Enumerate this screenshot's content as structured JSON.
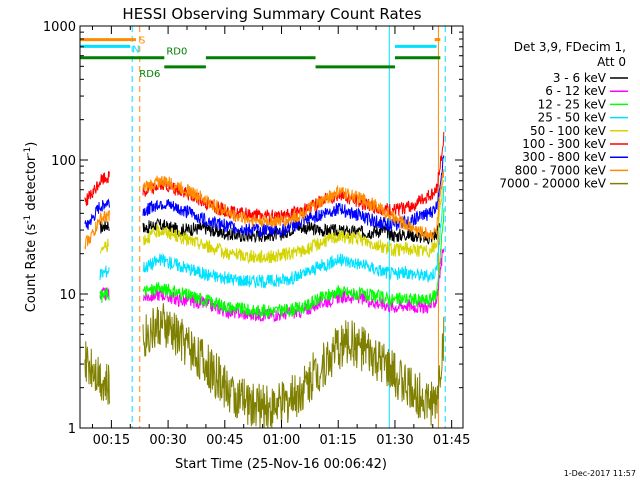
{
  "chart_data": {
    "type": "line",
    "title": "HESSI Observing Summary Count Rates",
    "xlabel": "Start Time (25-Nov-16 00:06:42)",
    "ylabel": "Count Rate (s⁻¹ detector⁻¹)",
    "ylabel_main": "Count Rate (s",
    "ylabel_sup1": "-1",
    "ylabel_mid": " detector",
    "ylabel_sup2": "-1",
    "ylabel_end": ")",
    "yscale": "log",
    "ylim": [
      1,
      1000
    ],
    "xlim_minutes": [
      6.7,
      108
    ],
    "y_ticks": [
      {
        "value": 1,
        "label": "1"
      },
      {
        "value": 10,
        "label": "10"
      },
      {
        "value": 100,
        "label": "100"
      },
      {
        "value": 1000,
        "label": "1000"
      }
    ],
    "x_ticks": [
      {
        "minute": 15,
        "label": "00:15"
      },
      {
        "minute": 30,
        "label": "00:30"
      },
      {
        "minute": 45,
        "label": "00:45"
      },
      {
        "minute": 60,
        "label": "01:00"
      },
      {
        "minute": 75,
        "label": "01:15"
      },
      {
        "minute": 90,
        "label": "01:30"
      },
      {
        "minute": 105,
        "label": "01:45"
      }
    ],
    "legend": {
      "header": [
        "Det 3,9, FDecim 1,",
        "Att 0"
      ],
      "placement": "right"
    },
    "series": [
      {
        "name": "3 - 6 keV",
        "color": "#000000",
        "points": [
          [
            12,
            31
          ],
          [
            13,
            32
          ],
          [
            14,
            33
          ],
          [
            24,
            31
          ],
          [
            27,
            33
          ],
          [
            33,
            30
          ],
          [
            40,
            31
          ],
          [
            43,
            29
          ],
          [
            50,
            27
          ],
          [
            60,
            28
          ],
          [
            64,
            32
          ],
          [
            70,
            30
          ],
          [
            78,
            29
          ],
          [
            83,
            29
          ],
          [
            87,
            30
          ],
          [
            90,
            27
          ],
          [
            93,
            28
          ],
          [
            96,
            27
          ],
          [
            99,
            26
          ],
          [
            101,
            28
          ],
          [
            102,
            35
          ]
        ]
      },
      {
        "name": "6 - 12 keV",
        "color": "#ff00ff",
        "points": [
          [
            12,
            10
          ],
          [
            14,
            10
          ],
          [
            24,
            9.5
          ],
          [
            28,
            10
          ],
          [
            33,
            9
          ],
          [
            40,
            8.5
          ],
          [
            45,
            7.5
          ],
          [
            52,
            7
          ],
          [
            58,
            7
          ],
          [
            62,
            7.2
          ],
          [
            66,
            7.5
          ],
          [
            70,
            8.5
          ],
          [
            75,
            9.5
          ],
          [
            80,
            9.5
          ],
          [
            86,
            8.5
          ],
          [
            90,
            8
          ],
          [
            93,
            8.3
          ],
          [
            96,
            8
          ],
          [
            99,
            8
          ],
          [
            101,
            9
          ],
          [
            103,
            25
          ]
        ]
      },
      {
        "name": "12 - 25 keV",
        "color": "#00ff00",
        "points": [
          [
            12,
            9.5
          ],
          [
            14,
            10
          ],
          [
            24,
            10.5
          ],
          [
            28,
            11
          ],
          [
            34,
            10
          ],
          [
            40,
            9
          ],
          [
            46,
            8
          ],
          [
            52,
            7.5
          ],
          [
            58,
            7.5
          ],
          [
            62,
            7.6
          ],
          [
            66,
            8
          ],
          [
            70,
            9.2
          ],
          [
            75,
            10.5
          ],
          [
            80,
            10
          ],
          [
            86,
            9.5
          ],
          [
            90,
            9
          ],
          [
            93,
            9.3
          ],
          [
            96,
            9
          ],
          [
            99,
            9
          ],
          [
            101,
            10
          ],
          [
            103,
            40
          ]
        ]
      },
      {
        "name": "25 - 50 keV",
        "color": "#00e0ff",
        "points": [
          [
            12,
            14
          ],
          [
            14,
            15
          ],
          [
            24,
            16
          ],
          [
            28,
            18
          ],
          [
            34,
            16
          ],
          [
            40,
            14
          ],
          [
            46,
            13
          ],
          [
            52,
            12.5
          ],
          [
            58,
            12.5
          ],
          [
            62,
            13
          ],
          [
            66,
            14
          ],
          [
            70,
            16
          ],
          [
            75,
            18
          ],
          [
            80,
            17
          ],
          [
            86,
            15
          ],
          [
            90,
            14
          ],
          [
            93,
            14.5
          ],
          [
            96,
            14
          ],
          [
            99,
            13.5
          ],
          [
            101,
            15
          ],
          [
            103,
            60
          ]
        ]
      },
      {
        "name": "50 - 100 keV",
        "color": "#d4d400",
        "points": [
          [
            12,
            22
          ],
          [
            14,
            23
          ],
          [
            24,
            26
          ],
          [
            28,
            30
          ],
          [
            34,
            26
          ],
          [
            40,
            23
          ],
          [
            46,
            20
          ],
          [
            52,
            19
          ],
          [
            58,
            19
          ],
          [
            62,
            20
          ],
          [
            66,
            21
          ],
          [
            70,
            24
          ],
          [
            75,
            27
          ],
          [
            80,
            26
          ],
          [
            86,
            23
          ],
          [
            90,
            21
          ],
          [
            93,
            22
          ],
          [
            96,
            21
          ],
          [
            99,
            21
          ],
          [
            101,
            23
          ],
          [
            103,
            80
          ]
        ]
      },
      {
        "name": "100 - 300 keV",
        "color": "#ff0000",
        "points": [
          [
            8,
            50
          ],
          [
            10,
            55
          ],
          [
            12,
            70
          ],
          [
            14,
            75
          ],
          [
            24,
            58
          ],
          [
            26,
            62
          ],
          [
            28,
            66
          ],
          [
            32,
            60
          ],
          [
            36,
            55
          ],
          [
            40,
            48
          ],
          [
            44,
            43
          ],
          [
            48,
            40
          ],
          [
            52,
            39
          ],
          [
            56,
            38
          ],
          [
            60,
            38
          ],
          [
            62,
            39
          ],
          [
            64,
            41
          ],
          [
            68,
            45
          ],
          [
            72,
            52
          ],
          [
            75,
            55
          ],
          [
            78,
            52
          ],
          [
            82,
            47
          ],
          [
            86,
            43
          ],
          [
            90,
            42
          ],
          [
            94,
            45
          ],
          [
            97,
            50
          ],
          [
            100,
            56
          ],
          [
            101,
            60
          ],
          [
            103,
            150
          ]
        ]
      },
      {
        "name": "300 - 800 keV",
        "color": "#0000ff",
        "points": [
          [
            8,
            32
          ],
          [
            10,
            36
          ],
          [
            12,
            45
          ],
          [
            14,
            48
          ],
          [
            24,
            42
          ],
          [
            26,
            45
          ],
          [
            28,
            48
          ],
          [
            32,
            44
          ],
          [
            36,
            40
          ],
          [
            40,
            36
          ],
          [
            44,
            33
          ],
          [
            48,
            31
          ],
          [
            52,
            30
          ],
          [
            56,
            30
          ],
          [
            60,
            30
          ],
          [
            62,
            31
          ],
          [
            64,
            33
          ],
          [
            68,
            37
          ],
          [
            72,
            41
          ],
          [
            75,
            43
          ],
          [
            78,
            41
          ],
          [
            82,
            37
          ],
          [
            86,
            34
          ],
          [
            90,
            33
          ],
          [
            94,
            35
          ],
          [
            97,
            38
          ],
          [
            100,
            41
          ],
          [
            101,
            45
          ],
          [
            103,
            110
          ]
        ]
      },
      {
        "name": "800 - 7000 keV",
        "color": "#ff8c00",
        "points": [
          [
            8,
            24
          ],
          [
            10,
            28
          ],
          [
            12,
            36
          ],
          [
            14,
            38
          ],
          [
            24,
            62
          ],
          [
            26,
            66
          ],
          [
            28,
            70
          ],
          [
            32,
            65
          ],
          [
            36,
            58
          ],
          [
            40,
            50
          ],
          [
            44,
            43
          ],
          [
            48,
            38
          ],
          [
            52,
            36
          ],
          [
            56,
            35
          ],
          [
            60,
            35
          ],
          [
            62,
            36
          ],
          [
            64,
            38
          ],
          [
            68,
            44
          ],
          [
            72,
            52
          ],
          [
            75,
            58
          ],
          [
            78,
            55
          ],
          [
            82,
            50
          ],
          [
            86,
            44
          ],
          [
            90,
            36
          ],
          [
            94,
            32
          ],
          [
            97,
            29
          ],
          [
            100,
            28
          ],
          [
            101,
            30
          ],
          [
            103,
            90
          ]
        ]
      },
      {
        "name": "7000 - 20000 keV",
        "color": "#808000",
        "points": [
          [
            8,
            3
          ],
          [
            10,
            3
          ],
          [
            12,
            2.5
          ],
          [
            14,
            2
          ],
          [
            24,
            5
          ],
          [
            26,
            5.5
          ],
          [
            28,
            6
          ],
          [
            32,
            5
          ],
          [
            36,
            4
          ],
          [
            40,
            3
          ],
          [
            44,
            2.2
          ],
          [
            48,
            1.7
          ],
          [
            52,
            1.5
          ],
          [
            56,
            1.4
          ],
          [
            60,
            1.5
          ],
          [
            62,
            1.6
          ],
          [
            64,
            1.8
          ],
          [
            68,
            2.4
          ],
          [
            72,
            3.2
          ],
          [
            75,
            4
          ],
          [
            78,
            4.5
          ],
          [
            82,
            3.8
          ],
          [
            86,
            3
          ],
          [
            90,
            2.5
          ],
          [
            94,
            2
          ],
          [
            97,
            1.7
          ],
          [
            100,
            1.5
          ],
          [
            101,
            1.6
          ],
          [
            103,
            5
          ]
        ]
      }
    ],
    "gaps_minutes": [
      [
        14.5,
        23.3
      ]
    ],
    "markers": [
      {
        "label": "S",
        "color": "#ff8c00",
        "segments": [
          [
            6.7,
            21.5
          ],
          [
            100.5,
            102
          ]
        ],
        "y": 792
      },
      {
        "label": "N",
        "color": "#00e0ff",
        "segments": [
          [
            6.7,
            20
          ],
          [
            90,
            101
          ]
        ],
        "y": 705
      },
      {
        "label": "RD0",
        "color": "#008000",
        "segments": [
          [
            6.7,
            29
          ],
          [
            40,
            69
          ],
          [
            90,
            102
          ]
        ],
        "y": 580
      },
      {
        "label": "RD6",
        "color": "#008000",
        "segments": [
          [
            29,
            40
          ],
          [
            69,
            90
          ]
        ],
        "y": 495
      }
    ],
    "vlines": [
      {
        "minute": 6.7,
        "color": "#00e0ff",
        "style": "solid"
      },
      {
        "minute": 20.5,
        "color": "#00e0ff",
        "style": "dashed"
      },
      {
        "minute": 22.5,
        "color": "#ff8c00",
        "style": "dashed"
      },
      {
        "minute": 88.5,
        "color": "#00e0ff",
        "style": "solid"
      },
      {
        "minute": 101.5,
        "color": "#ff8c00",
        "style": "solid"
      },
      {
        "minute": 103.3,
        "color": "#00e0ff",
        "style": "dashed"
      }
    ],
    "footer_date": "1-Dec-2017 11:57"
  }
}
